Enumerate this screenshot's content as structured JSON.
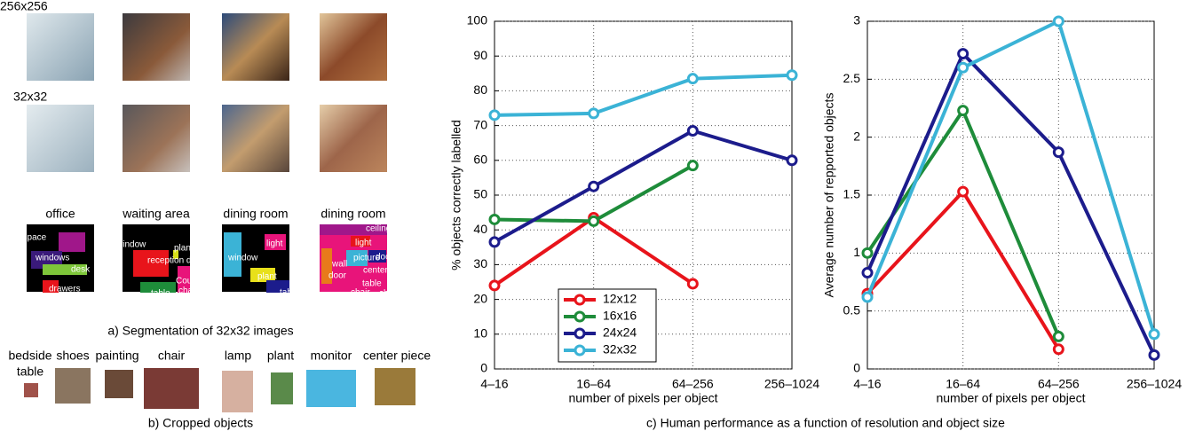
{
  "left_panel": {
    "size_labels": [
      "256x256",
      "32x32"
    ],
    "scenes": [
      "office",
      "waiting area",
      "dining room",
      "dining room"
    ],
    "segmentation_labels": [
      [
        "wall-space",
        "windows",
        "desk",
        "drawers"
      ],
      [
        "window",
        "plant",
        "reception desk",
        "table",
        "Couche",
        "chairs"
      ],
      [
        "light",
        "window",
        "plant",
        "table",
        "chairs"
      ],
      [
        "ceiling",
        "light",
        "picture",
        "doors",
        "wall",
        "center piece",
        "cture",
        "door",
        "table",
        "chair",
        "chair",
        "chair",
        "floor"
      ]
    ],
    "cropped_objects": [
      [
        "bedside",
        "table"
      ],
      [
        "shoes"
      ],
      [
        "painting"
      ],
      [
        "chair"
      ],
      [
        "lamp"
      ],
      [
        "plant"
      ],
      [
        "monitor"
      ],
      [
        "center piece"
      ]
    ]
  },
  "captions": [
    "a) Segmentation of 32x32 images",
    "b) Cropped objects",
    "c) Human performance as a function of resolution and object size"
  ],
  "chart_data": [
    {
      "type": "line",
      "xlabel": "number of pixels per object",
      "ylabel": "% objects correctly labelled",
      "categories": [
        "4–16",
        "16–64",
        "64–256",
        "256–1024"
      ],
      "ylim": [
        0,
        100
      ],
      "yticks": [
        0,
        10,
        20,
        30,
        40,
        50,
        60,
        70,
        80,
        90,
        100
      ],
      "grid": true,
      "legend": "lower left",
      "series": [
        {
          "name": "12x12",
          "color": "#e8141b",
          "values": [
            24,
            43.5,
            24.5,
            null
          ]
        },
        {
          "name": "16x16",
          "color": "#1e8c3a",
          "values": [
            43,
            42.5,
            58.5,
            null
          ]
        },
        {
          "name": "24x24",
          "color": "#1c1c8c",
          "values": [
            36.5,
            52.5,
            68.5,
            60
          ]
        },
        {
          "name": "32x32",
          "color": "#3bb3d6",
          "values": [
            73,
            73.5,
            83.5,
            84.5
          ]
        }
      ]
    },
    {
      "type": "line",
      "xlabel": "number of pixels per object",
      "ylabel": "Average number of repported objects",
      "categories": [
        "4–16",
        "16–64",
        "64–256",
        "256–1024"
      ],
      "ylim": [
        0,
        3
      ],
      "yticks": [
        0,
        0.5,
        1,
        1.5,
        2,
        2.5,
        3
      ],
      "grid": true,
      "series": [
        {
          "name": "12x12",
          "color": "#e8141b",
          "values": [
            0.65,
            1.53,
            0.17,
            null
          ]
        },
        {
          "name": "16x16",
          "color": "#1e8c3a",
          "values": [
            1.0,
            2.23,
            0.28,
            null
          ]
        },
        {
          "name": "24x24",
          "color": "#1c1c8c",
          "values": [
            0.83,
            2.72,
            1.87,
            0.12
          ]
        },
        {
          "name": "32x32",
          "color": "#3bb3d6",
          "values": [
            0.62,
            2.6,
            3.0,
            0.3
          ]
        }
      ]
    }
  ]
}
